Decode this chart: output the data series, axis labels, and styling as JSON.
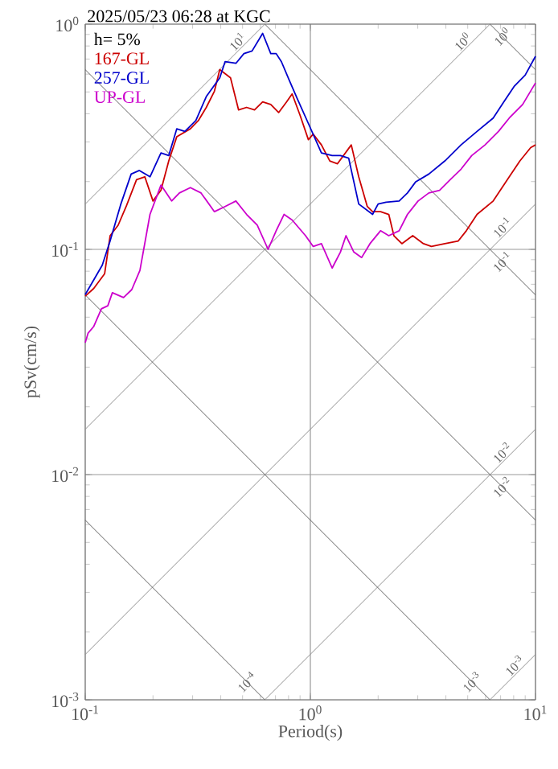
{
  "chart_data": {
    "type": "line",
    "title": "2025/05/23 06:28 at KGC",
    "xlabel": "Period(s)",
    "ylabel": "pSv(cm/s)",
    "log": "xy",
    "grid": true,
    "legend": "top left",
    "xlim": [
      0.1,
      10
    ],
    "ylim": [
      0.001,
      1
    ],
    "xticks": [
      {
        "value": 0.1,
        "label": "10$^{-1}$"
      },
      {
        "value": 1,
        "label": "10$^{0}$"
      },
      {
        "value": 10,
        "label": "10$^{1}$"
      }
    ],
    "yticks": [
      {
        "value": 0.001,
        "label": "10$^{-3}$"
      },
      {
        "value": 0.01,
        "label": "10$^{-2}$"
      },
      {
        "value": 0.1,
        "label": "10$^{-1}$"
      },
      {
        "value": 1,
        "label": "10$^{0}$"
      }
    ],
    "annotations": [
      "h= 5%",
      {
        "text": "10$^{1}$",
        "x": 0.5,
        "y": 0.796
      },
      {
        "text": "10$^{0}$",
        "x": 5,
        "y": 0.796
      },
      {
        "text": "10$^{0}$",
        "x": 7.5,
        "y": 0.837
      },
      {
        "text": "10$^{-1}$",
        "x": 7.5,
        "y": 0.119
      },
      {
        "text": "10$^{-1}$",
        "x": 7.5,
        "y": 0.0837
      },
      {
        "text": "10$^{-2}$",
        "x": 7.5,
        "y": 0.0119
      },
      {
        "text": "10$^{-2}$",
        "x": 7.5,
        "y": 0.00837
      },
      {
        "text": "10$^{-3}$",
        "x": 8.5,
        "y": 0.00135
      },
      {
        "text": "10$^{-3}$",
        "x": 5.5,
        "y": 0.00114
      },
      {
        "text": "10$^{-4}$",
        "x": 0.55,
        "y": 0.00114
      }
    ],
    "series": [
      {
        "color": "#909090",
        "x": [
          0.1,
          0.628
        ],
        "values": [
          0.159,
          1
        ]
      },
      {
        "color": "#909090",
        "x": [
          0.1,
          6.28
        ],
        "values": [
          0.0159,
          1
        ]
      },
      {
        "color": "#909090",
        "x": [
          0.1,
          10
        ],
        "values": [
          0.00159,
          0.159
        ]
      },
      {
        "color": "#909090",
        "x": [
          0.628,
          10
        ],
        "values": [
          0.001,
          0.0159
        ]
      },
      {
        "color": "#909090",
        "x": [
          6.28,
          10
        ],
        "values": [
          0.001,
          0.00159
        ]
      },
      {
        "color": "#606060",
        "x": [
          6.28,
          10
        ],
        "values": [
          1,
          0.628
        ]
      },
      {
        "color": "#606060",
        "x": [
          0.628,
          10
        ],
        "values": [
          1,
          0.0628
        ]
      },
      {
        "color": "#606060",
        "x": [
          0.1,
          10
        ],
        "values": [
          0.628,
          0.00628
        ]
      },
      {
        "color": "#606060",
        "x": [
          0.1,
          6.28
        ],
        "values": [
          0.0628,
          0.001
        ]
      },
      {
        "color": "#606060",
        "x": [
          0.1,
          0.628
        ],
        "values": [
          0.00628,
          0.001
        ]
      },
      {
        "name": "167-GL",
        "color": "#cc0000",
        "x": [
          0.1,
          0.109,
          0.122,
          0.129,
          0.14,
          0.152,
          0.169,
          0.184,
          0.2,
          0.217,
          0.235,
          0.255,
          0.293,
          0.318,
          0.345,
          0.375,
          0.396,
          0.442,
          0.48,
          0.521,
          0.565,
          0.614,
          0.667,
          0.723,
          0.785,
          0.83,
          0.9,
          0.98,
          1.03,
          1.12,
          1.22,
          1.32,
          1.52,
          1.64,
          1.79,
          1.89,
          2.05,
          2.23,
          2.35,
          2.55,
          2.85,
          3.18,
          3.45,
          3.96,
          4.54,
          4.93,
          5.5,
          6.49,
          7.65,
          8.53,
          9.52,
          10
        ],
        "values": [
          0.062,
          0.067,
          0.078,
          0.115,
          0.128,
          0.155,
          0.204,
          0.21,
          0.164,
          0.183,
          0.247,
          0.316,
          0.343,
          0.373,
          0.427,
          0.504,
          0.628,
          0.578,
          0.416,
          0.427,
          0.416,
          0.452,
          0.44,
          0.405,
          0.452,
          0.49,
          0.394,
          0.307,
          0.325,
          0.291,
          0.247,
          0.24,
          0.291,
          0.21,
          0.155,
          0.147,
          0.147,
          0.143,
          0.115,
          0.106,
          0.115,
          0.106,
          0.103,
          0.106,
          0.109,
          0.121,
          0.143,
          0.164,
          0.21,
          0.247,
          0.283,
          0.291
        ]
      },
      {
        "name": "257-GL",
        "color": "#0000cc",
        "x": [
          0.1,
          0.119,
          0.129,
          0.144,
          0.16,
          0.174,
          0.194,
          0.217,
          0.235,
          0.255,
          0.277,
          0.31,
          0.345,
          0.396,
          0.418,
          0.467,
          0.507,
          0.551,
          0.614,
          0.667,
          0.705,
          0.744,
          0.807,
          0.877,
          0.979,
          1.12,
          1.25,
          1.36,
          1.48,
          1.64,
          1.89,
          2.0,
          2.17,
          2.48,
          2.7,
          2.93,
          3.36,
          3.96,
          4.67,
          5.5,
          6.49,
          7.24,
          8.07,
          9.0,
          10
        ],
        "values": [
          0.063,
          0.085,
          0.109,
          0.159,
          0.216,
          0.224,
          0.21,
          0.268,
          0.261,
          0.343,
          0.334,
          0.373,
          0.477,
          0.578,
          0.681,
          0.67,
          0.74,
          0.76,
          0.91,
          0.74,
          0.74,
          0.681,
          0.562,
          0.464,
          0.363,
          0.268,
          0.261,
          0.261,
          0.254,
          0.159,
          0.143,
          0.159,
          0.162,
          0.164,
          0.178,
          0.199,
          0.216,
          0.247,
          0.291,
          0.334,
          0.383,
          0.452,
          0.532,
          0.594,
          0.72
        ]
      },
      {
        "name": "UP-GL",
        "color": "#cc00cc",
        "x": [
          0.1,
          0.103,
          0.109,
          0.118,
          0.126,
          0.132,
          0.148,
          0.161,
          0.175,
          0.194,
          0.217,
          0.242,
          0.262,
          0.293,
          0.327,
          0.375,
          0.418,
          0.467,
          0.521,
          0.581,
          0.649,
          0.705,
          0.764,
          0.83,
          0.952,
          1.03,
          1.12,
          1.25,
          1.36,
          1.44,
          1.56,
          1.69,
          1.84,
          2.05,
          2.23,
          2.48,
          2.7,
          3.01,
          3.36,
          3.75,
          4.18,
          4.67,
          5.21,
          5.97,
          6.85,
          7.65,
          8.77,
          10
        ],
        "values": [
          0.0385,
          0.0425,
          0.0454,
          0.0545,
          0.0562,
          0.0642,
          0.0611,
          0.0663,
          0.0807,
          0.143,
          0.193,
          0.164,
          0.178,
          0.188,
          0.178,
          0.147,
          0.155,
          0.164,
          0.143,
          0.128,
          0.1,
          0.121,
          0.143,
          0.135,
          0.115,
          0.103,
          0.106,
          0.0826,
          0.0973,
          0.115,
          0.0973,
          0.092,
          0.106,
          0.121,
          0.115,
          0.121,
          0.143,
          0.164,
          0.178,
          0.183,
          0.204,
          0.227,
          0.261,
          0.291,
          0.334,
          0.383,
          0.44,
          0.548
        ]
      }
    ]
  }
}
